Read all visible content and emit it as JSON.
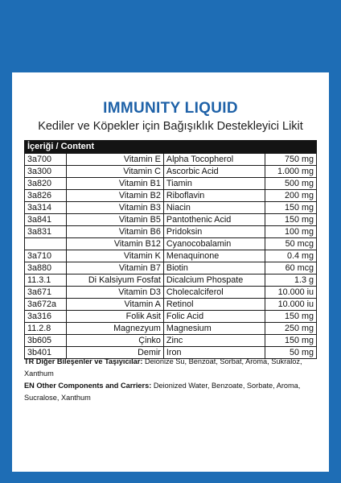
{
  "title": "IMMUNITY LIQUID",
  "subtitle": "Kediler ve Köpekler için Bağışıklık Destekleyici Likit",
  "table_header": "İçeriği / Content",
  "rows": [
    {
      "code": "3a700",
      "name_tr": "Vitamin E",
      "name_en": "Alpha Tocopherol",
      "amount": "750 mg"
    },
    {
      "code": "3a300",
      "name_tr": "Vitamin C",
      "name_en": "Ascorbic Acid",
      "amount": "1.000 mg"
    },
    {
      "code": "3a820",
      "name_tr": "Vitamin B1",
      "name_en": "Tiamin",
      "amount": "500 mg"
    },
    {
      "code": "3a826",
      "name_tr": "Vitamin B2",
      "name_en": "Riboflavin",
      "amount": "200 mg"
    },
    {
      "code": "3a314",
      "name_tr": "Vitamin B3",
      "name_en": "Niacin",
      "amount": "150 mg"
    },
    {
      "code": "3a841",
      "name_tr": "Vitamin B5",
      "name_en": "Pantothenic Acid",
      "amount": "150 mg"
    },
    {
      "code": "3a831",
      "name_tr": "Vitamin B6",
      "name_en": "Pridoksin",
      "amount": "100 mg"
    },
    {
      "code": "",
      "name_tr": "Vitamin B12",
      "name_en": "Cyanocobalamin",
      "amount": "50 mcg"
    },
    {
      "code": "3a710",
      "name_tr": "Vitamin K",
      "name_en": "Menaquinone",
      "amount": "0.4 mg"
    },
    {
      "code": "3a880",
      "name_tr": "Vitamin B7",
      "name_en": "Biotin",
      "amount": "60 mcg"
    },
    {
      "code": "11.3.1",
      "name_tr": "Di Kalsiyum Fosfat",
      "name_en": "Dicalcium Phospate",
      "amount": "1.3 g"
    },
    {
      "code": "3a671",
      "name_tr": "Vitamin D3",
      "name_en": "Cholecalciferol",
      "amount": "10.000 iu"
    },
    {
      "code": "3a672a",
      "name_tr": "Vitamin A",
      "name_en": "Retinol",
      "amount": "10.000 iu"
    },
    {
      "code": "3a316",
      "name_tr": "Folik Asit",
      "name_en": "Folic Acid",
      "amount": "150 mg"
    },
    {
      "code": "11.2.8",
      "name_tr": "Magnezyum",
      "name_en": "Magnesium",
      "amount": "250 mg"
    },
    {
      "code": "3b605",
      "name_tr": "Çinko",
      "name_en": "Zinc",
      "amount": "150 mg"
    },
    {
      "code": "3b401",
      "name_tr": "Demir",
      "name_en": "Iron",
      "amount": "50 mg"
    }
  ],
  "notes": {
    "tr_label": "TR Diğer Bileşenler ve Taşıyıcılar:",
    "tr_text": "Deionize Su, Benzoat, Sorbat, Aroma, Sukraloz, Xanthum",
    "en_label": "EN Other Components and Carriers:",
    "en_text": "Deionized Water, Benzoate, Sorbate, Aroma, Sucralose, Xanthum"
  },
  "colors": {
    "frame": "#1e6db5",
    "title": "#1f62a8",
    "header_bg": "#141414"
  }
}
